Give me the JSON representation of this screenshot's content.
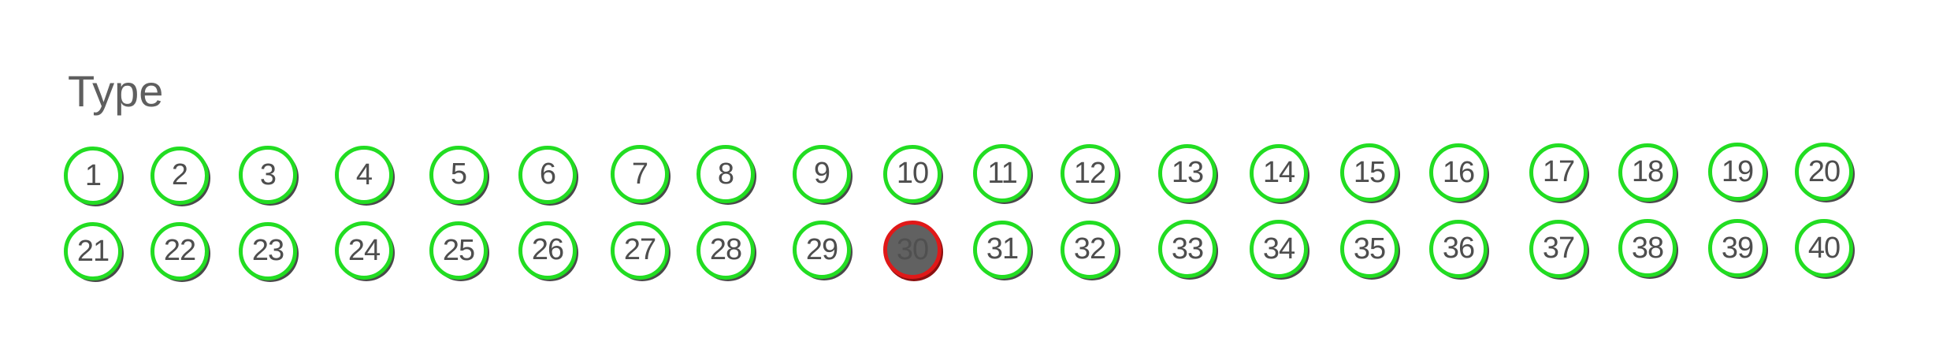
{
  "title": "Type",
  "selected": "30",
  "colors": {
    "ring": "#22dd22",
    "selected_ring": "#e01818",
    "selected_fill": "#616161",
    "text": "#4e4e4e"
  },
  "rows": [
    [
      "1",
      "2",
      "3",
      "4",
      "5",
      "6",
      "7",
      "8",
      "9",
      "10",
      "11",
      "12",
      "13",
      "14",
      "15",
      "16",
      "17",
      "18",
      "19",
      "20"
    ],
    [
      "21",
      "22",
      "23",
      "24",
      "25",
      "26",
      "27",
      "28",
      "29",
      "30",
      "31",
      "32",
      "33",
      "34",
      "35",
      "36",
      "37",
      "38",
      "39",
      "40"
    ]
  ]
}
